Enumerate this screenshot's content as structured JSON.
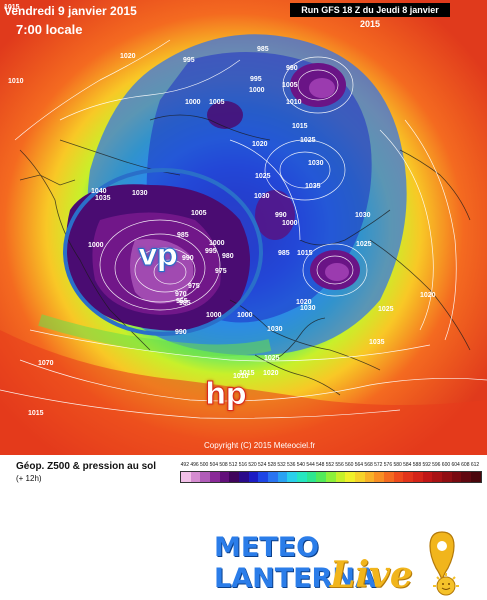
{
  "header": {
    "date": "Vendredi 9 janvier 2015",
    "time": "7:00 locale",
    "run": "Run GFS 18 Z du Jeudi 8 janvier 2015"
  },
  "copyright": "Copyright (C) 2015 Meteociel.fr",
  "labels": {
    "low": "vp",
    "high": "hp"
  },
  "annotation_color": "#2a6fc9",
  "isobars": [
    "1015",
    "1010",
    "1020",
    "985",
    "990",
    "995",
    "1000",
    "1005",
    "995",
    "1000",
    "1005",
    "1010",
    "1015",
    "1020",
    "1025",
    "1030",
    "1035",
    "1030",
    "1025",
    "1005",
    "1040",
    "1035",
    "1030",
    "1000",
    "985",
    "990",
    "995",
    "1000",
    "980",
    "975",
    "970",
    "965",
    "985",
    "975",
    "990",
    "1000",
    "1000",
    "1030",
    "1025",
    "1020",
    "1015",
    "1010",
    "1000",
    "990",
    "985",
    "1015",
    "1020",
    "1030",
    "1030",
    "1025",
    "1035",
    "1025",
    "1020",
    "1070",
    "1015"
  ],
  "legend": {
    "title": "Géop. Z500 & pression au sol",
    "subtitle": "(+ 12h)",
    "scale_values": [
      "492",
      "496",
      "500",
      "504",
      "508",
      "512",
      "516",
      "520",
      "524",
      "528",
      "532",
      "536",
      "540",
      "544",
      "548",
      "552",
      "556",
      "560",
      "564",
      "568",
      "572",
      "576",
      "580",
      "584",
      "588",
      "592",
      "596",
      "600",
      "604",
      "608",
      "612"
    ],
    "scale_colors": [
      "#f2c0e8",
      "#d58cd0",
      "#b05cb8",
      "#8a2a98",
      "#62107a",
      "#40045c",
      "#2a0a8a",
      "#1c1cc4",
      "#1e46e6",
      "#2a74f2",
      "#2aa2f2",
      "#2ad0ea",
      "#26e6c0",
      "#2ee690",
      "#52ea5a",
      "#8cf03a",
      "#c6f02a",
      "#f0f02a",
      "#f6d22a",
      "#f8b028",
      "#f88e24",
      "#f46a20",
      "#ee4a1c",
      "#e2341a",
      "#d42418",
      "#c01616",
      "#a81214",
      "#900e12",
      "#780a10",
      "#600810",
      "#4a060c"
    ]
  },
  "brand": {
    "main": "METEO LANTERNA",
    "script": "Live"
  }
}
